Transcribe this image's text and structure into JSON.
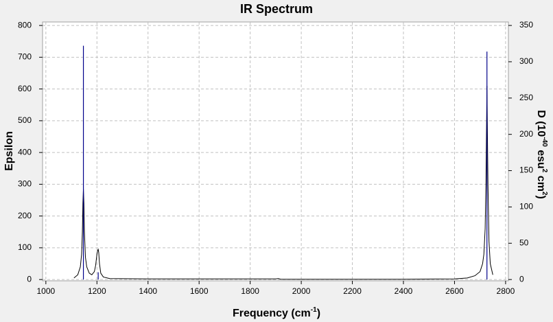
{
  "chart_data": {
    "type": "line",
    "title": "IR Spectrum",
    "xlabel": [
      "Frequency (cm",
      "-1",
      ")"
    ],
    "ylabel": "Epsilon",
    "y2label": [
      "D (10",
      "-40",
      " esu",
      "2",
      " cm",
      "2",
      ")"
    ],
    "xlim": [
      987,
      2811
    ],
    "xticks": [
      1000,
      1200,
      1400,
      1600,
      1800,
      2000,
      2200,
      2400,
      2600,
      2800
    ],
    "ylim": [
      -4,
      811
    ],
    "yticks": [
      0,
      100,
      200,
      300,
      400,
      500,
      600,
      700,
      800
    ],
    "y2lim": [
      -1.75,
      354.8
    ],
    "y2ticks": [
      0,
      50,
      100,
      150,
      200,
      250,
      300,
      350
    ],
    "grid": true,
    "series": [
      {
        "style": "line",
        "color": "#000000",
        "x": [
          1110,
          1125,
          1135,
          1140,
          1143,
          1145,
          1147,
          1149,
          1151,
          1155,
          1160,
          1170,
          1180,
          1190,
          1195,
          1200,
          1203,
          1205,
          1207,
          1210,
          1215,
          1225,
          1250,
          1400,
          1600,
          1800,
          1900,
          1910,
          1920,
          2000,
          2200,
          2400,
          2600,
          2650,
          2680,
          2700,
          2710,
          2715,
          2720,
          2723,
          2725,
          2727,
          2729,
          2731,
          2735,
          2740,
          2750
        ],
        "values": [
          5,
          15,
          40,
          80,
          150,
          240,
          285,
          240,
          150,
          70,
          40,
          20,
          15,
          25,
          45,
          80,
          92,
          95,
          85,
          50,
          20,
          8,
          3,
          2,
          2,
          2,
          2,
          3,
          1,
          1,
          1,
          1,
          2,
          5,
          12,
          25,
          50,
          80,
          160,
          300,
          450,
          610,
          450,
          300,
          120,
          50,
          15
        ]
      },
      {
        "style": "stick",
        "axis": "y2",
        "color": "#00008b",
        "x": [
          1147,
          1205,
          2727
        ],
        "values": [
          322,
          10,
          314
        ]
      }
    ]
  }
}
